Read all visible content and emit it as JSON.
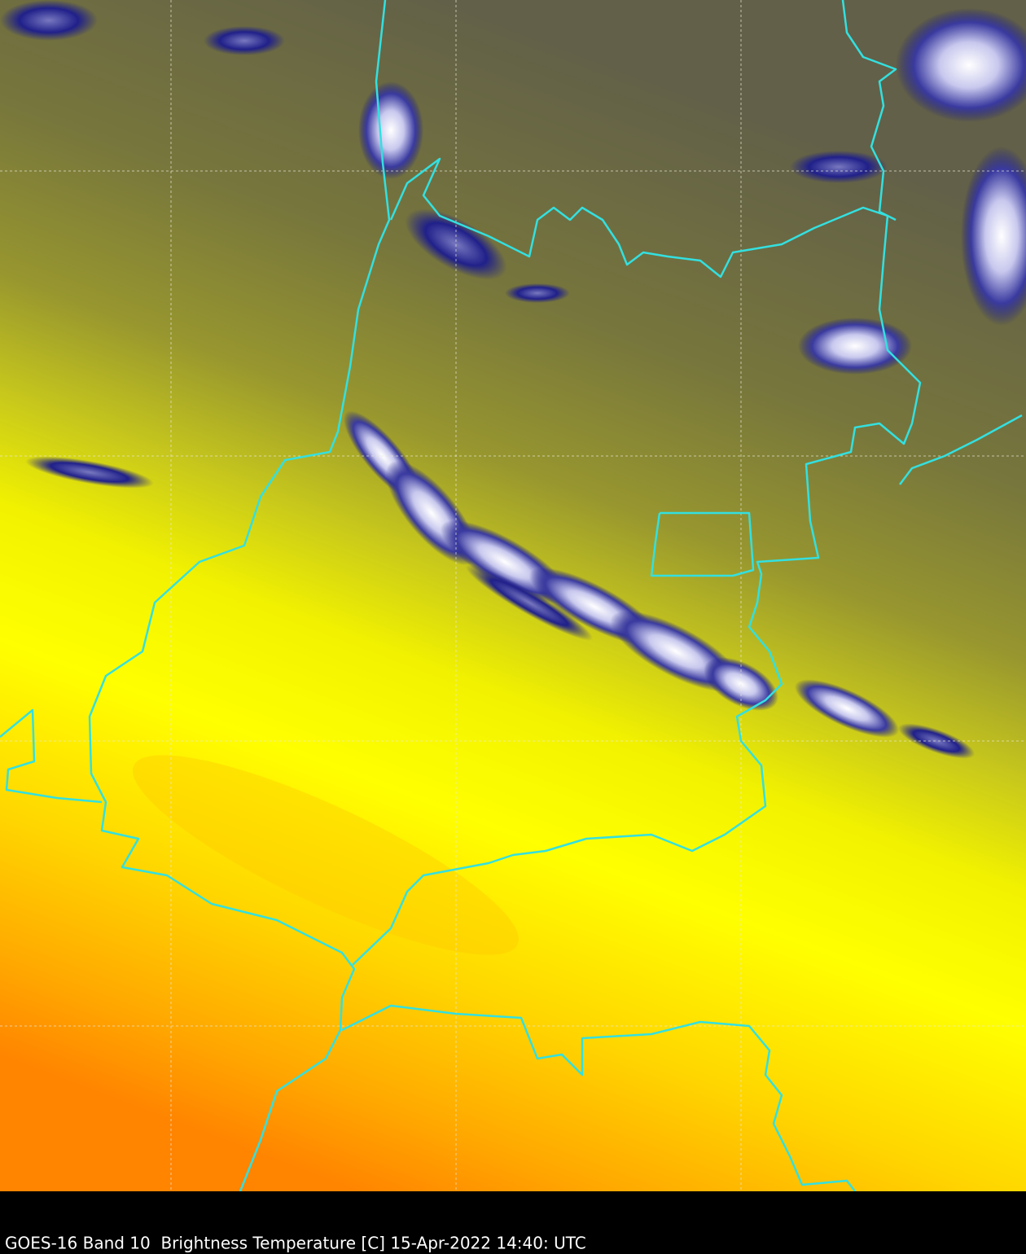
{
  "caption": "GOES-16 Band 10  Brightness Temperature [C] 15-Apr-2022 14:40: UTC"
}
